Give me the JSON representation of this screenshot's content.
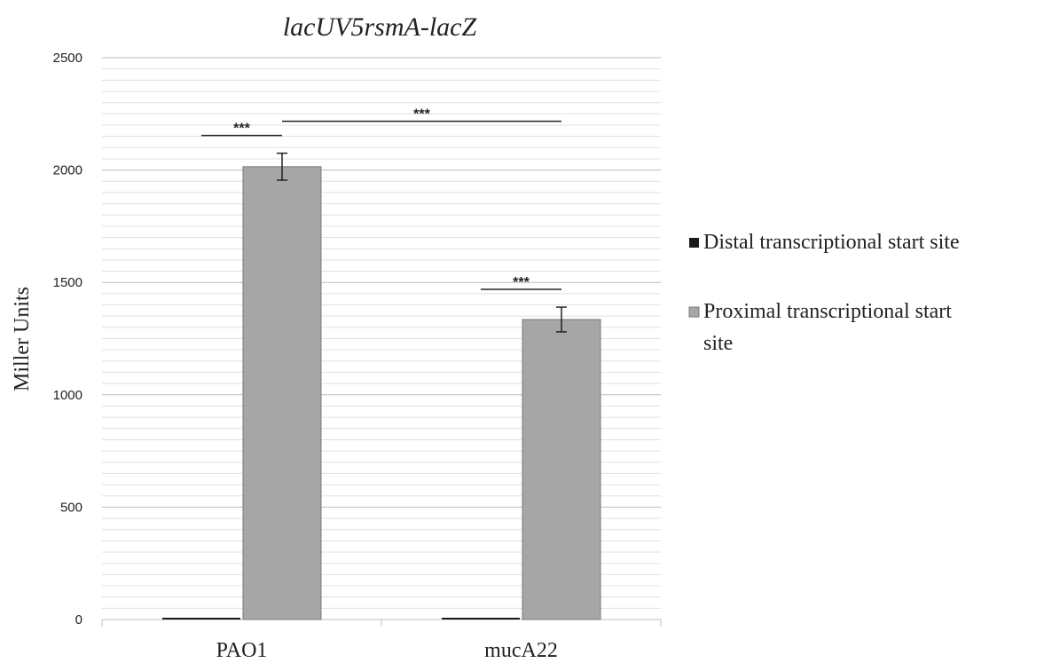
{
  "chart_data": {
    "type": "bar",
    "title": "lacUV5rsmA-lacZ",
    "ylabel": "Miller Units",
    "xlabel": "",
    "categories": [
      "PAO1",
      "mucA22"
    ],
    "ylim": [
      0,
      2500
    ],
    "yticks": [
      0,
      500,
      1000,
      1500,
      2000,
      2500
    ],
    "minor_grid_step": 50,
    "grid": true,
    "legend_position": "right",
    "series": [
      {
        "name": "Distal transcriptional start site",
        "color": "#1a1a1a",
        "values": [
          5,
          5
        ],
        "errors": [
          0,
          0
        ]
      },
      {
        "name": "Proximal transcriptional start site",
        "color": "#a6a6a6",
        "values": [
          2015,
          1335
        ],
        "errors": [
          60,
          55
        ]
      }
    ],
    "annotations": [
      {
        "text": "***",
        "type": "within-group",
        "group": 0
      },
      {
        "text": "***",
        "type": "between-groups",
        "series": 1,
        "from": 0,
        "to": 1
      },
      {
        "text": "***",
        "type": "within-group",
        "group": 1
      }
    ]
  }
}
